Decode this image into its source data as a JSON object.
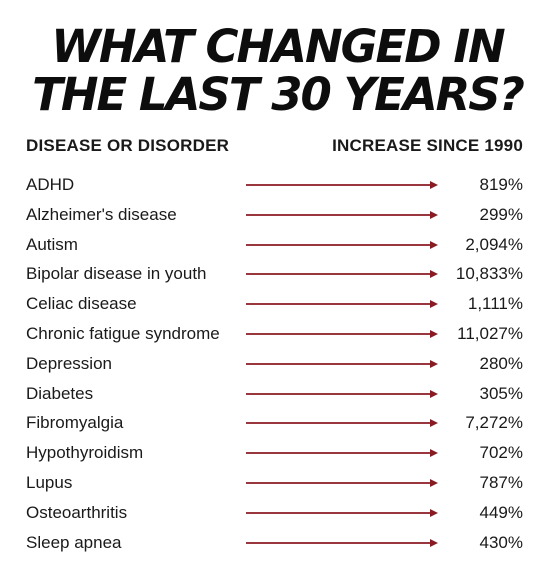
{
  "title": {
    "line1": "WHAT CHANGED IN",
    "line2": "THE LAST 30 YEARS?"
  },
  "headers": {
    "left": "DISEASE OR DISORDER",
    "right": "INCREASE SINCE 1990"
  },
  "colors": {
    "arrow": "#8b1a22",
    "text": "#1a1a1a"
  },
  "rows": [
    {
      "name": "ADHD",
      "value": "819%"
    },
    {
      "name": "Alzheimer's disease",
      "value": "299%"
    },
    {
      "name": "Autism",
      "value": "2,094%"
    },
    {
      "name": "Bipolar disease in youth",
      "value": "10,833%"
    },
    {
      "name": "Celiac disease",
      "value": "1,111%"
    },
    {
      "name": "Chronic fatigue syndrome",
      "value": "11,027%"
    },
    {
      "name": "Depression",
      "value": "280%"
    },
    {
      "name": "Diabetes",
      "value": "305%"
    },
    {
      "name": "Fibromyalgia",
      "value": "7,272%"
    },
    {
      "name": "Hypothyroidism",
      "value": "702%"
    },
    {
      "name": "Lupus",
      "value": "787%"
    },
    {
      "name": "Osteoarthritis",
      "value": "449%"
    },
    {
      "name": "Sleep apnea",
      "value": "430%"
    }
  ]
}
